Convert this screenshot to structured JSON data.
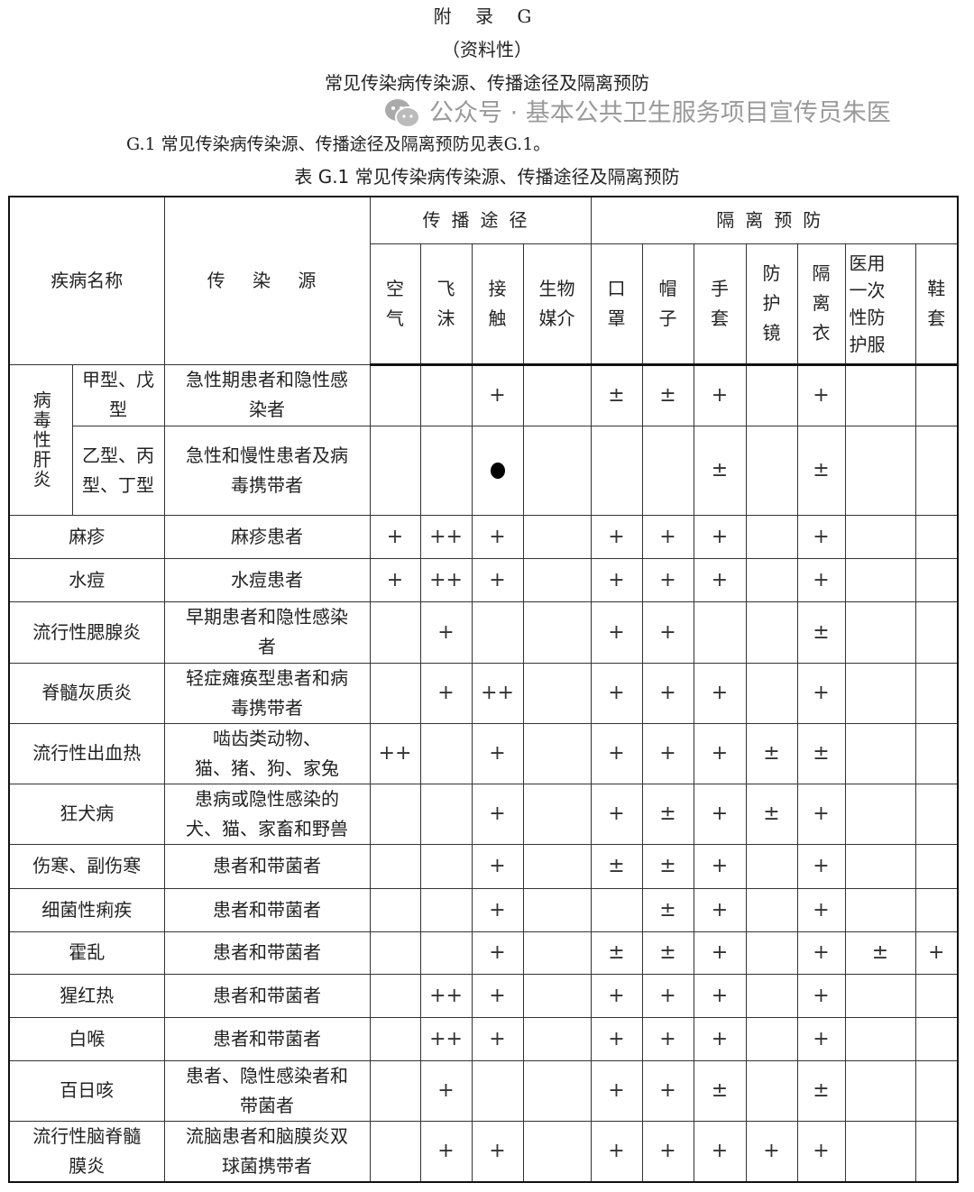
{
  "header": {
    "appendix": "附 录 G",
    "nature": "（资料性）",
    "title": "常见传染病传染源、传播途径及隔离预防",
    "intro": "G.1  常见传染病传染源、传播途径及隔离预防见表G.1。",
    "table_caption": "表 G.1  常见传染病传染源、传播途径及隔离预防"
  },
  "table": {
    "col_disease": "疾病名称",
    "col_source": "传 染 源",
    "group_route": "传播途径",
    "group_isolation": "隔离预防",
    "route_cols": [
      "空\n气",
      "飞\n沫",
      "接\n触",
      "生物\n媒介"
    ],
    "isolation_cols": [
      "口\n罩",
      "帽\n子",
      "手\n套",
      "防\n护\n镜",
      "隔\n离\n衣",
      "医用\n一次\n性防\n护服",
      "鞋\n套"
    ],
    "hepatitis_group": "病毒性肝炎",
    "rows": [
      {
        "disease": "甲型、戊\n型",
        "source": "急性期患者和隐性感\n染者",
        "marks": [
          "",
          "",
          "+",
          "",
          "±",
          "±",
          "+",
          "",
          "+",
          "",
          ""
        ]
      },
      {
        "disease": "乙型、丙\n型、丁型",
        "source": "急性和慢性患者及病\n毒携带者",
        "marks": [
          "",
          "",
          "●",
          "",
          "",
          "",
          "±",
          "",
          "±",
          "",
          ""
        ]
      },
      {
        "disease": "麻疹",
        "source": "麻疹患者",
        "marks": [
          "+",
          "++",
          "+",
          "",
          "+",
          "+",
          "+",
          "",
          "+",
          "",
          ""
        ]
      },
      {
        "disease": "水痘",
        "source": "水痘患者",
        "marks": [
          "+",
          "++",
          "+",
          "",
          "+",
          "+",
          "+",
          "",
          "+",
          "",
          ""
        ]
      },
      {
        "disease": "流行性腮腺炎",
        "source": "早期患者和隐性感染\n者",
        "marks": [
          "",
          "+",
          "",
          "",
          "+",
          "+",
          "",
          "",
          "±",
          "",
          ""
        ]
      },
      {
        "disease": "脊髓灰质炎",
        "source": "轻症瘫痪型患者和病\n毒携带者",
        "marks": [
          "",
          "+",
          "++",
          "",
          "+",
          "+",
          "+",
          "",
          "+",
          "",
          ""
        ]
      },
      {
        "disease": "流行性出血热",
        "source": "啮齿类动物、\n猫、猪、狗、家兔",
        "marks": [
          "++",
          "",
          "+",
          "",
          "+",
          "+",
          "+",
          "±",
          "±",
          "",
          ""
        ]
      },
      {
        "disease": "狂犬病",
        "source": "患病或隐性感染的\n犬、猫、家畜和野兽",
        "marks": [
          "",
          "",
          "+",
          "",
          "+",
          "±",
          "+",
          "±",
          "+",
          "",
          ""
        ]
      },
      {
        "disease": "伤寒、副伤寒",
        "source": "患者和带菌者",
        "marks": [
          "",
          "",
          "+",
          "",
          "±",
          "±",
          "+",
          "",
          "+",
          "",
          ""
        ]
      },
      {
        "disease": "细菌性痢疾",
        "source": "患者和带菌者",
        "marks": [
          "",
          "",
          "+",
          "",
          "",
          "±",
          "+",
          "",
          "+",
          "",
          ""
        ]
      },
      {
        "disease": "霍乱",
        "source": "患者和带菌者",
        "marks": [
          "",
          "",
          "+",
          "",
          "±",
          "±",
          "+",
          "",
          "+",
          "±",
          "+"
        ]
      },
      {
        "disease": "猩红热",
        "source": "患者和带菌者",
        "marks": [
          "",
          "++",
          "+",
          "",
          "+",
          "+",
          "+",
          "",
          "+",
          "",
          ""
        ]
      },
      {
        "disease": "白喉",
        "source": "患者和带菌者",
        "marks": [
          "",
          "++",
          "+",
          "",
          "+",
          "+",
          "+",
          "",
          "+",
          "",
          ""
        ]
      },
      {
        "disease": "百日咳",
        "source": "患者、隐性感染者和\n带菌者",
        "marks": [
          "",
          "+",
          "",
          "",
          "+",
          "+",
          "±",
          "",
          "±",
          "",
          ""
        ]
      },
      {
        "disease": "流行性脑脊髓\n膜炎",
        "source": "流脑患者和脑膜炎双\n球菌携带者",
        "marks": [
          "",
          "+",
          "+",
          "",
          "+",
          "+",
          "+",
          "+",
          "+",
          "",
          ""
        ]
      }
    ]
  },
  "watermark": {
    "text": "公众号 · 基本公共卫生服务项目宣传员朱医",
    "icon": "wechat-icon"
  }
}
